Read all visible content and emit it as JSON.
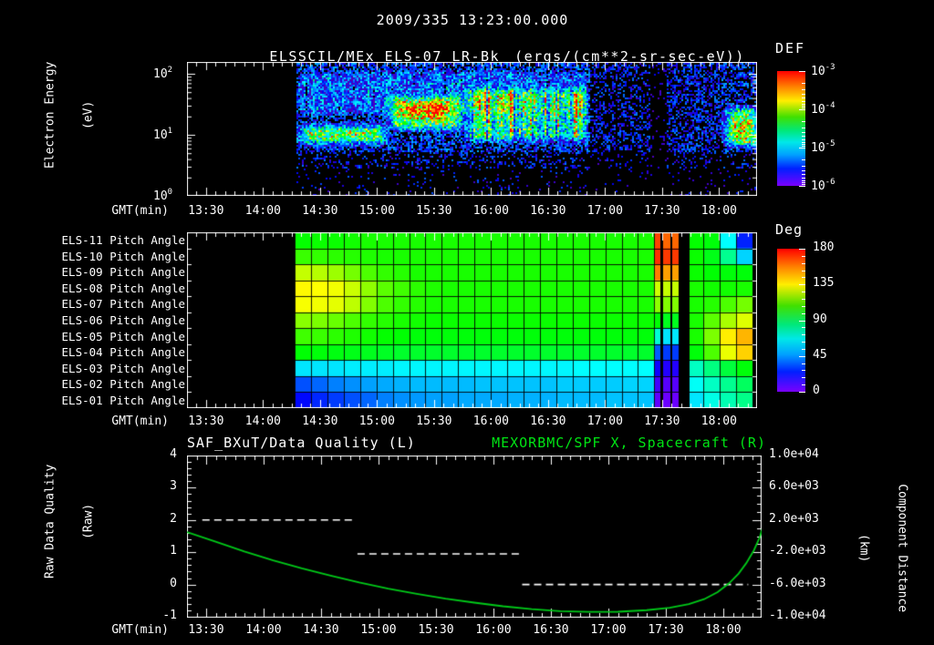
{
  "colors": {
    "background": "#000000",
    "text": "#ffffff",
    "accent_green": "#00e414",
    "curve_green": "#00c818",
    "frame": "#ffffff"
  },
  "header": {
    "line1": "2009/335 13:23:00.000",
    "line2": "ELSSCIL/MEx ELS-07 LR-Bk",
    "line2_units": "(ergs/(cm**2-sr-sec-eV))"
  },
  "time_axis": {
    "label": "GMT(min)",
    "ticks": [
      "13:30",
      "14:00",
      "14:30",
      "15:00",
      "15:30",
      "16:00",
      "16:30",
      "17:00",
      "17:30",
      "18:00"
    ],
    "start_offset_min": 10,
    "step_min": 30,
    "total_min": 300
  },
  "top_panel": {
    "ylabel_line1": "Electron Energy",
    "ylabel_line2": "(eV)",
    "yticks": [
      {
        "b": "10",
        "e": "2"
      },
      {
        "b": "10",
        "e": "1"
      },
      {
        "b": "10",
        "e": "0"
      }
    ],
    "colorbar": {
      "label": "DEF",
      "ticks": [
        {
          "b": "10",
          "e": "-3"
        },
        {
          "b": "10",
          "e": "-4"
        },
        {
          "b": "10",
          "e": "-5"
        },
        {
          "b": "10",
          "e": "-6"
        }
      ]
    }
  },
  "middle_panel": {
    "row_labels": [
      "ELS-11 Pitch Angle",
      "ELS-10 Pitch Angle",
      "ELS-09 Pitch Angle",
      "ELS-08 Pitch Angle",
      "ELS-07 Pitch Angle",
      "ELS-06 Pitch Angle",
      "ELS-05 Pitch Angle",
      "ELS-04 Pitch Angle",
      "ELS-03 Pitch Angle",
      "ELS-02 Pitch Angle",
      "ELS-01 Pitch Angle"
    ],
    "colorbar": {
      "label": "Deg",
      "ticks": [
        "180",
        "135",
        "90",
        "45",
        "0"
      ]
    }
  },
  "bottom_panel": {
    "title_left": "SAF_BXuT/Data Quality (L)",
    "title_right": "MEXORBMC/SPF X, Spacecraft (R)",
    "ylabel_left_line1": "Raw Data Quality",
    "ylabel_left_line2": "(Raw)",
    "ylabel_right_line1": "Component Distance",
    "ylabel_right_line2": "(km)",
    "yticks_left": [
      "4",
      "3",
      "2",
      "1",
      "0",
      "-1"
    ],
    "yticks_right": [
      "1.0e+04",
      "6.0e+03",
      "2.0e+03",
      "-2.0e+03",
      "-6.0e+03",
      "-1.0e+04"
    ]
  },
  "chart_data": [
    {
      "type": "heatmap",
      "name": "electron-energy-spectrogram",
      "title": "ELSSCIL/MEx ELS-07 LR-Bk",
      "units": "ergs/(cm**2-sr-sec-eV)",
      "x_axis": {
        "start": "13:20",
        "end": "18:20",
        "ticks": [
          "13:30",
          "14:00",
          "14:30",
          "15:00",
          "15:30",
          "16:00",
          "16:30",
          "17:00",
          "17:30",
          "18:00"
        ]
      },
      "y_axis": {
        "scale": "log",
        "label": "Electron Energy (eV)",
        "ticks_ev": [
          1,
          10,
          100
        ],
        "range_ev": [
          1,
          158
        ]
      },
      "colorbar": {
        "label": "DEF",
        "min": 1e-06,
        "max": 0.001
      },
      "data_start_min": 57,
      "noise_zones": [
        [
          57,
          212,
          0.62,
          0.3
        ],
        [
          212,
          243,
          0.38,
          0.24
        ],
        [
          243,
          252,
          0.1,
          0.15
        ],
        [
          252,
          281,
          0.5,
          0.26
        ],
        [
          281,
          305,
          0.55,
          0.3
        ]
      ],
      "features": [
        {
          "t": [
            57,
            106
          ],
          "logE": [
            0.82,
            1.22
          ],
          "amp": 0.5,
          "streaky": 0
        },
        {
          "t": [
            57,
            106
          ],
          "logE": [
            0.92,
            1.12
          ],
          "amp": 0.25,
          "streaky": 0
        },
        {
          "t": [
            104,
            147
          ],
          "logE": [
            1.05,
            1.68
          ],
          "amp": 0.55,
          "streaky": 0
        },
        {
          "t": [
            110,
            140
          ],
          "logE": [
            1.2,
            1.58
          ],
          "amp": 0.3,
          "streaky": 0
        },
        {
          "t": [
            145,
            212
          ],
          "logE": [
            0.88,
            1.8
          ],
          "amp": 0.45,
          "streaky": 1
        },
        {
          "t": [
            57,
            212
          ],
          "logE": [
            1.3,
            2.1
          ],
          "amp": 0.14,
          "streaky": 1
        },
        {
          "t": [
            281,
            303
          ],
          "logE": [
            0.78,
            1.5
          ],
          "amp": 0.55,
          "streaky": 0
        },
        {
          "t": [
            284,
            300
          ],
          "logE": [
            0.88,
            1.32
          ],
          "amp": 0.3,
          "streaky": 0
        }
      ]
    },
    {
      "type": "heatmap",
      "name": "pitch-angle-panel",
      "rows": [
        "ELS-11",
        "ELS-10",
        "ELS-09",
        "ELS-08",
        "ELS-07",
        "ELS-06",
        "ELS-05",
        "ELS-04",
        "ELS-03",
        "ELS-02",
        "ELS-01"
      ],
      "value_unit": "deg",
      "value_range": [
        0,
        180
      ],
      "colorbar": {
        "label": "Deg",
        "ticks": [
          180,
          135,
          90,
          45,
          0
        ]
      },
      "data_start_min": 57,
      "data_end_min": 297,
      "values": [
        [
          97,
          98,
          98,
          99,
          100,
          100,
          100,
          100,
          100,
          100,
          100,
          100,
          100,
          100,
          100,
          100,
          100,
          100,
          100,
          100,
          100,
          100,
          100,
          100,
          97,
          95,
          65,
          35
        ],
        [
          105,
          104,
          103,
          102,
          101,
          100,
          100,
          100,
          100,
          100,
          100,
          100,
          100,
          100,
          100,
          100,
          100,
          100,
          100,
          100,
          100,
          100,
          100,
          100,
          98,
          93,
          78,
          60
        ],
        [
          126,
          124,
          120,
          114,
          108,
          104,
          102,
          100,
          100,
          100,
          100,
          100,
          100,
          100,
          100,
          100,
          100,
          100,
          100,
          100,
          100,
          100,
          100,
          100,
          98,
          96,
          95,
          95
        ],
        [
          136,
          135,
          133,
          127,
          118,
          110,
          106,
          103,
          101,
          100,
          100,
          100,
          100,
          100,
          100,
          100,
          100,
          100,
          100,
          100,
          100,
          100,
          100,
          100,
          100,
          99,
          99,
          100
        ],
        [
          134,
          133,
          131,
          125,
          116,
          108,
          104,
          102,
          100,
          100,
          100,
          100,
          100,
          100,
          100,
          100,
          100,
          100,
          100,
          100,
          100,
          100,
          100,
          100,
          100,
          102,
          108,
          114
        ],
        [
          117,
          115,
          112,
          108,
          104,
          102,
          100,
          99,
          98,
          98,
          98,
          98,
          98,
          98,
          98,
          98,
          98,
          98,
          98,
          98,
          98,
          98,
          98,
          98,
          100,
          110,
          122,
          130
        ],
        [
          106,
          105,
          103,
          101,
          99,
          97,
          96,
          95,
          95,
          95,
          95,
          95,
          95,
          95,
          95,
          95,
          95,
          95,
          95,
          95,
          95,
          95,
          95,
          95,
          100,
          115,
          138,
          148
        ],
        [
          96,
          95,
          94,
          93,
          92,
          91,
          90,
          90,
          90,
          90,
          90,
          90,
          90,
          90,
          90,
          90,
          90,
          90,
          90,
          90,
          90,
          90,
          90,
          90,
          95,
          108,
          132,
          143
        ],
        [
          62,
          62,
          62,
          63,
          63,
          63,
          64,
          64,
          64,
          64,
          64,
          64,
          64,
          64,
          64,
          64,
          64,
          65,
          65,
          65,
          65,
          65,
          65,
          65,
          72,
          80,
          88,
          95
        ],
        [
          44,
          47,
          50,
          52,
          54,
          55,
          56,
          57,
          57,
          57,
          57,
          58,
          58,
          58,
          58,
          58,
          59,
          59,
          59,
          59,
          60,
          60,
          60,
          60,
          66,
          72,
          78,
          84
        ],
        [
          30,
          36,
          40,
          44,
          47,
          50,
          52,
          53,
          54,
          54,
          55,
          55,
          55,
          56,
          56,
          56,
          57,
          57,
          57,
          58,
          58,
          58,
          58,
          58,
          62,
          68,
          74,
          79
        ]
      ],
      "stripes": {
        "palette_a": [
          168,
          172,
          158,
          128,
          118,
          96,
          70,
          46,
          26,
          16,
          10
        ],
        "palette_b": [
          162,
          170,
          152,
          126,
          116,
          92,
          62,
          40,
          22,
          12,
          8
        ]
      }
    },
    {
      "type": "line",
      "name": "quality-and-distance",
      "series": [
        {
          "name": "SAF_BXuT/Data Quality (L)",
          "axis": "left",
          "style": "dashed",
          "color": "#ffffff",
          "segments": [
            {
              "value": 2,
              "t": [
                8,
                87
              ]
            },
            {
              "value": 0.95,
              "t": [
                89,
                174
              ]
            },
            {
              "value": 0,
              "t": [
                175,
                293
              ]
            }
          ]
        },
        {
          "name": "MEXORBMC/SPF X, Spacecraft (R)",
          "axis": "right",
          "style": "solid",
          "color": "#00c818",
          "points_t_km": [
            [
              0,
              500
            ],
            [
              15,
              -700
            ],
            [
              30,
              -1900
            ],
            [
              45,
              -3000
            ],
            [
              60,
              -4000
            ],
            [
              75,
              -4900
            ],
            [
              90,
              -5750
            ],
            [
              105,
              -6500
            ],
            [
              120,
              -7150
            ],
            [
              135,
              -7750
            ],
            [
              150,
              -8250
            ],
            [
              165,
              -8700
            ],
            [
              180,
              -9050
            ],
            [
              195,
              -9300
            ],
            [
              210,
              -9400
            ],
            [
              225,
              -9380
            ],
            [
              240,
              -9180
            ],
            [
              252,
              -8880
            ],
            [
              262,
              -8420
            ],
            [
              270,
              -7820
            ],
            [
              277,
              -6950
            ],
            [
              283,
              -5850
            ],
            [
              288,
              -4650
            ],
            [
              292,
              -3350
            ],
            [
              296,
              -1750
            ],
            [
              299,
              -150
            ],
            [
              301,
              1400
            ],
            [
              302.5,
              3800
            ]
          ]
        }
      ],
      "ylim_left": [
        -1,
        4
      ],
      "ylim_right": [
        -10000,
        10000
      ]
    }
  ]
}
